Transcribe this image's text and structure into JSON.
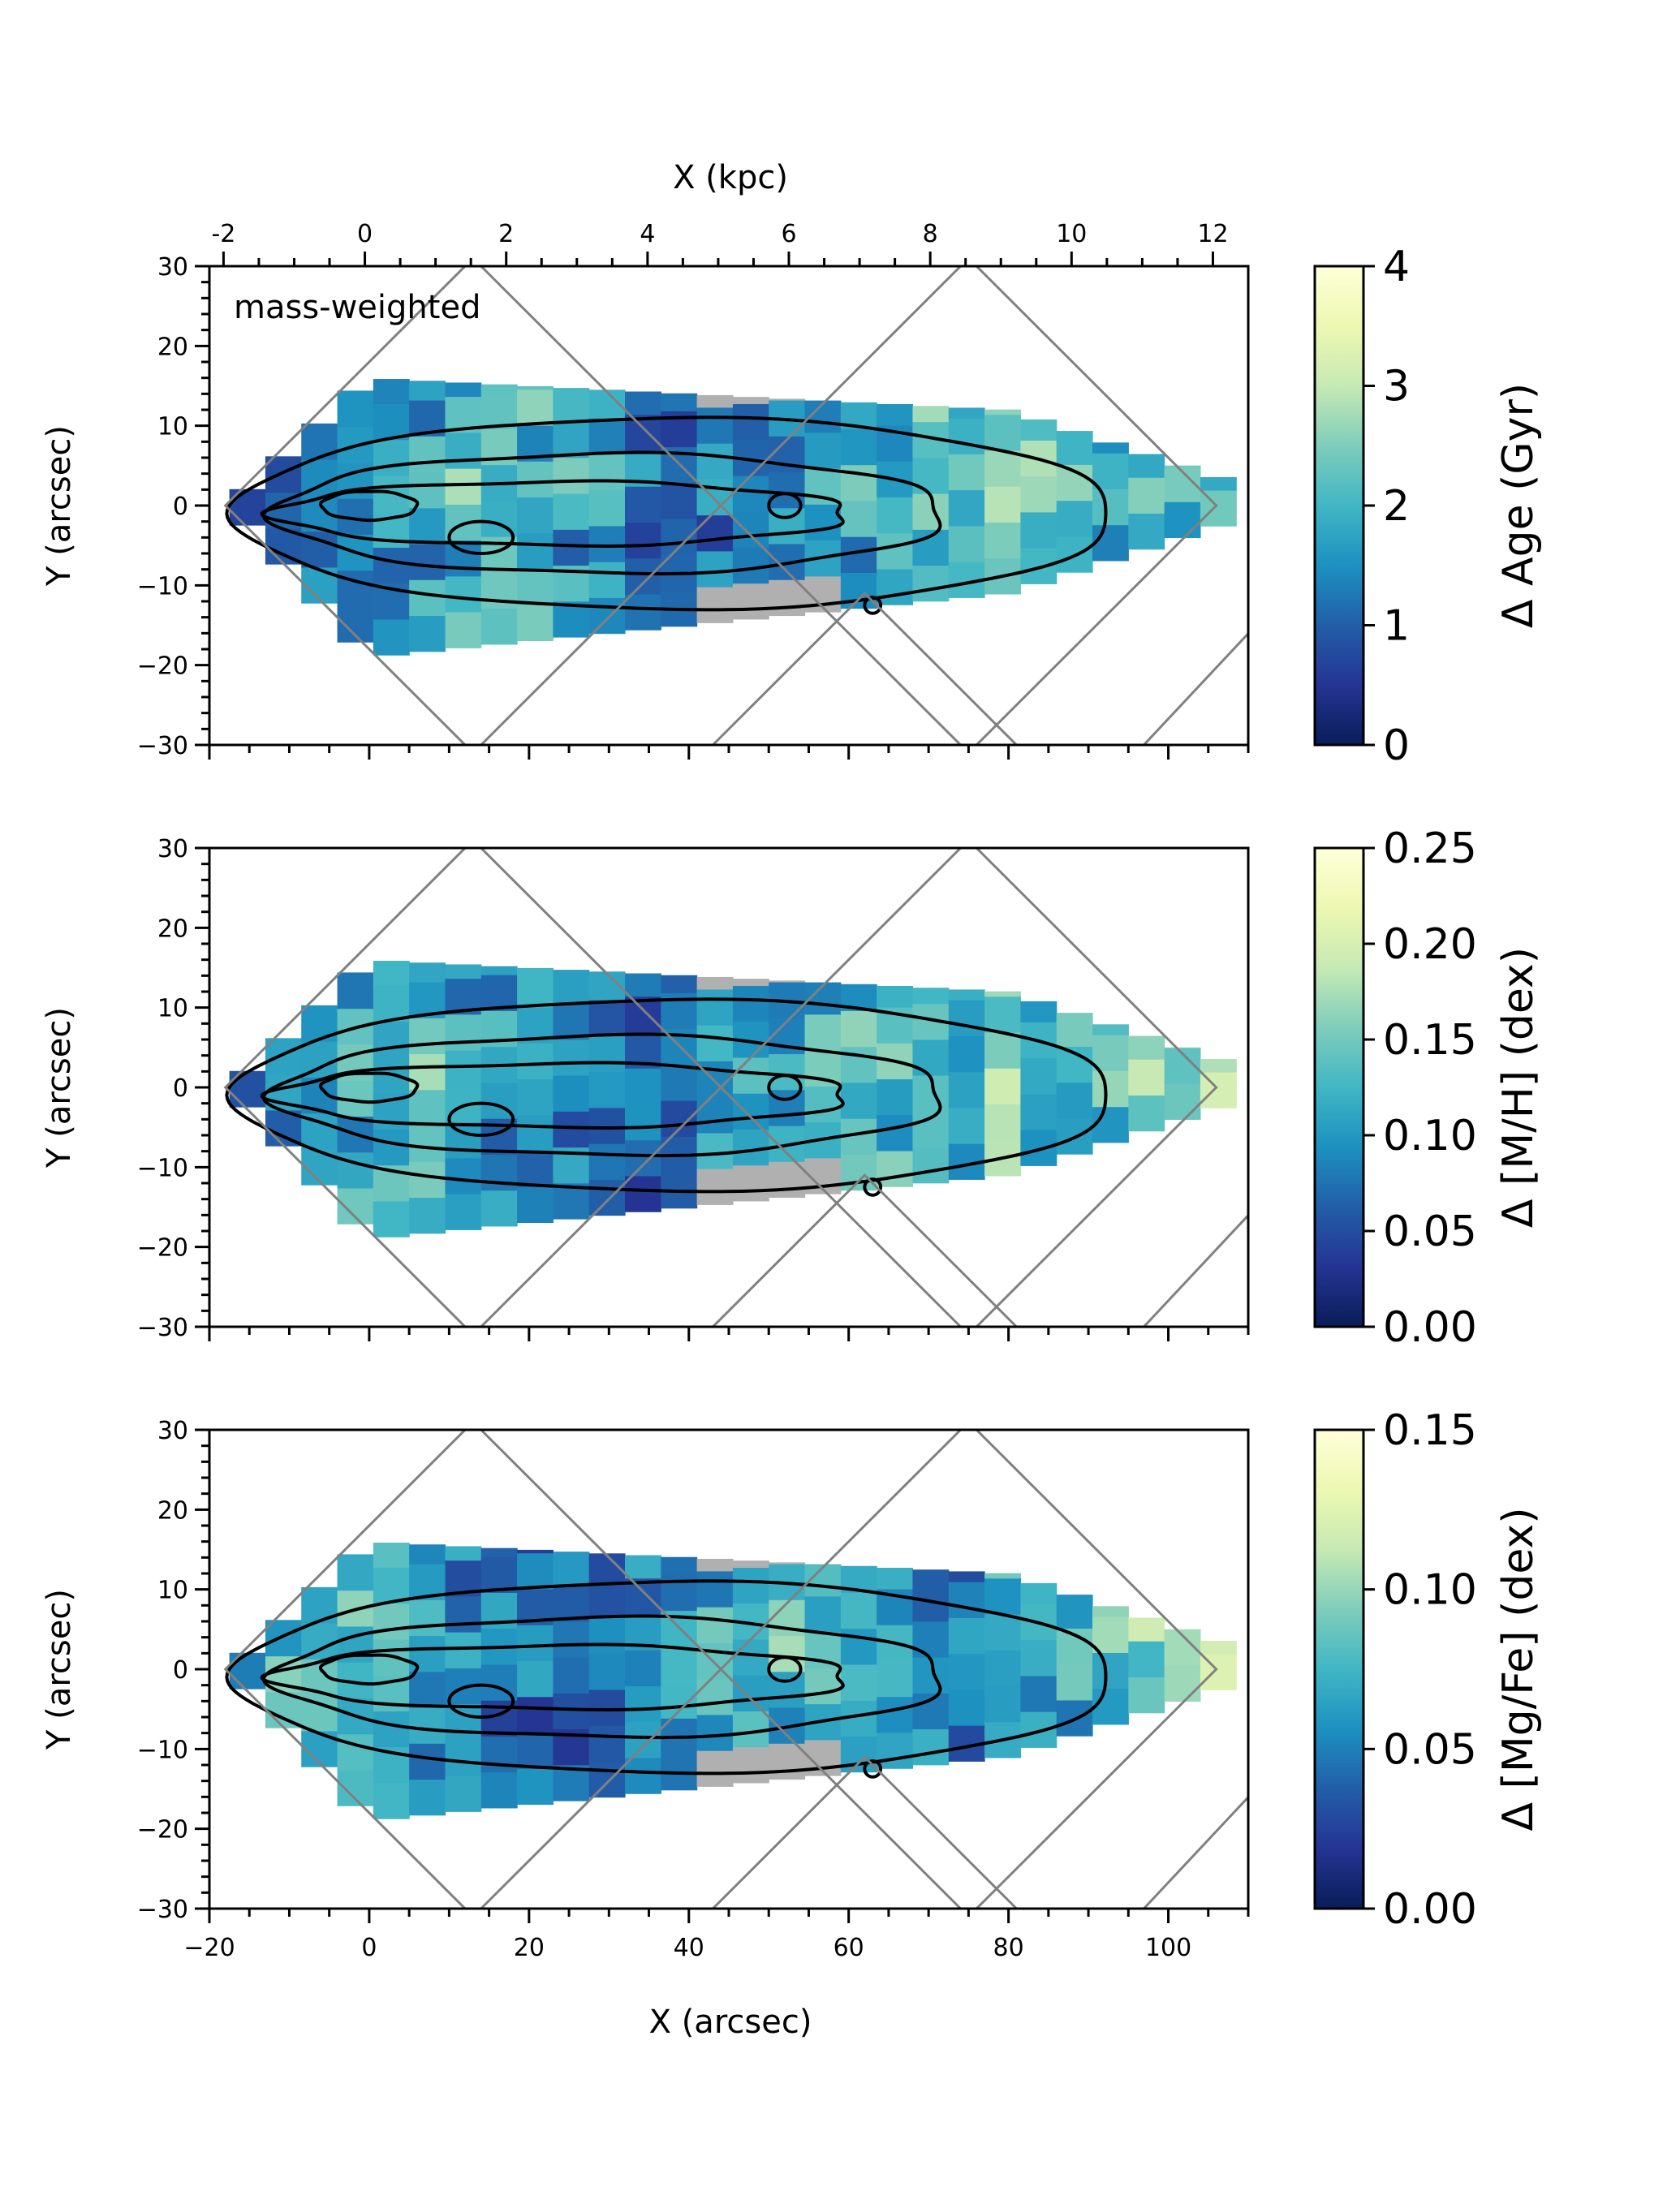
{
  "chart_data": [
    {
      "type": "heatmap",
      "panel": "top",
      "annotation": "mass-weighted",
      "xlabel": "",
      "ylabel": "Y (arcsec)",
      "top_xlabel": "X (kpc)",
      "xlim": [
        -20,
        110
      ],
      "ylim": [
        -30,
        30
      ],
      "top_xlim_kpc": [
        -2.2,
        12.5
      ],
      "x_ticks": [],
      "y_ticks": [
        30,
        20,
        10,
        0,
        -10,
        -20,
        -30
      ],
      "top_x_ticks": [
        -2,
        0,
        2,
        4,
        6,
        8,
        10,
        12
      ],
      "colorbar": {
        "label": "Δ Age (Gyr)",
        "range": [
          0,
          4
        ],
        "ticks": [
          0,
          1,
          2,
          3,
          4
        ]
      },
      "grid": false
    },
    {
      "type": "heatmap",
      "panel": "middle",
      "xlabel": "",
      "ylabel": "Y (arcsec)",
      "xlim": [
        -20,
        110
      ],
      "ylim": [
        -30,
        30
      ],
      "x_ticks": [],
      "y_ticks": [
        30,
        20,
        10,
        0,
        -10,
        -20,
        -30
      ],
      "colorbar": {
        "label": "Δ [M/H] (dex)",
        "range": [
          0,
          0.25
        ],
        "ticks": [
          "0.00",
          "0.05",
          "0.10",
          "0.15",
          "0.20",
          "0.25"
        ]
      },
      "grid": false
    },
    {
      "type": "heatmap",
      "panel": "bottom",
      "xlabel": "X (arcsec)",
      "ylabel": "Y (arcsec)",
      "xlim": [
        -20,
        110
      ],
      "ylim": [
        -30,
        30
      ],
      "x_ticks": [
        -20,
        0,
        20,
        40,
        60,
        80,
        100
      ],
      "y_ticks": [
        30,
        20,
        10,
        0,
        -10,
        -20,
        -30
      ],
      "colorbar": {
        "label": "Δ [Mg/Fe] (dex)",
        "range": [
          0,
          0.15
        ],
        "ticks": [
          "0.00",
          "0.05",
          "0.10",
          "0.15"
        ]
      },
      "grid": false
    }
  ],
  "colors": {
    "cmap": [
      "#081d58",
      "#253494",
      "#225ea8",
      "#1d91c0",
      "#41b6c4",
      "#7fcdbb",
      "#c7e9b4",
      "#edf8b1",
      "#ffffd9"
    ],
    "contour": "#000000",
    "footprint": "#808080",
    "masked": "#b0b0b0"
  }
}
